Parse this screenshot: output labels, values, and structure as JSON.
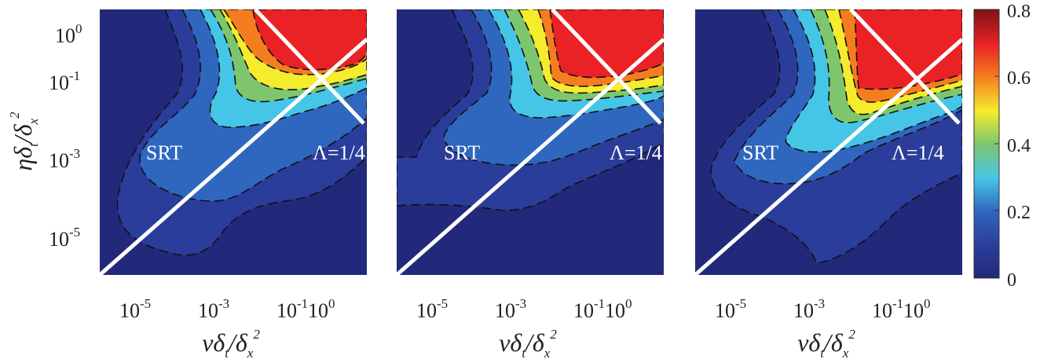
{
  "chart_data": [
    {
      "type": "heatmap",
      "x_tick_labels": [
        "10-5",
        "10-3",
        "10-1",
        "100"
      ],
      "y_tick_labels": [
        "100",
        "10-1",
        "10-3",
        "10-5"
      ],
      "xlabel": "νδt/δx2",
      "ylabel": "ηδt/δx2",
      "x_scale": "log",
      "y_scale": "log",
      "xlim": [
        3e-07,
        5
      ],
      "ylim": [
        1e-06,
        5
      ],
      "annotations": [
        "SRT",
        "Λ=1/4"
      ],
      "lines": [
        {
          "x": [
            3e-07,
            3
          ],
          "y": [
            1e-06,
            0.4
          ],
          "color": "#ffffff"
        },
        {
          "x": [
            0.004,
            3
          ],
          "y": [
            4.7,
            0.007
          ],
          "color": "#ffffff"
        }
      ],
      "levels": [
        0.1,
        0.2,
        0.3,
        0.4,
        0.5,
        0.6,
        0.7
      ]
    },
    {
      "type": "heatmap",
      "x_tick_labels": [
        "10-5",
        "10-3",
        "10-1",
        "100"
      ],
      "xlabel": "νδt/δx2",
      "x_scale": "log",
      "y_scale": "log",
      "xlim": [
        3e-07,
        5
      ],
      "ylim": [
        1e-06,
        5
      ],
      "annotations": [
        "SRT",
        "Λ=1/4"
      ],
      "lines": [
        {
          "x": [
            3e-07,
            3
          ],
          "y": [
            1e-06,
            0.4
          ],
          "color": "#ffffff"
        },
        {
          "x": [
            0.004,
            3
          ],
          "y": [
            4.7,
            0.007
          ],
          "color": "#ffffff"
        }
      ],
      "levels": [
        0.1,
        0.2,
        0.3,
        0.4,
        0.5,
        0.6,
        0.7
      ]
    },
    {
      "type": "heatmap",
      "x_tick_labels": [
        "10-5",
        "10-3",
        "10-1",
        "100"
      ],
      "xlabel": "νδt/δx2",
      "x_scale": "log",
      "y_scale": "log",
      "xlim": [
        3e-07,
        5
      ],
      "ylim": [
        1e-06,
        5
      ],
      "annotations": [
        "SRT",
        "Λ=1/4"
      ],
      "lines": [
        {
          "x": [
            3e-07,
            3
          ],
          "y": [
            1e-06,
            0.4
          ],
          "color": "#ffffff"
        },
        {
          "x": [
            0.004,
            3
          ],
          "y": [
            4.7,
            0.007
          ],
          "color": "#ffffff"
        }
      ],
      "levels": [
        0.1,
        0.2,
        0.3,
        0.4,
        0.5,
        0.6,
        0.7
      ]
    }
  ],
  "colorbar": {
    "ticks": [
      "0.8",
      "0.6",
      "0.4",
      "0.2",
      "0"
    ],
    "range": [
      0,
      0.8
    ],
    "colormap": "jet"
  },
  "colors": {
    "background": "#23297a",
    "band_colors": [
      "#23297a",
      "#2b3d9a",
      "#2f67bf",
      "#46c6e6",
      "#7dc66e",
      "#f4ec2c",
      "#f47d20",
      "#ea2226"
    ]
  }
}
